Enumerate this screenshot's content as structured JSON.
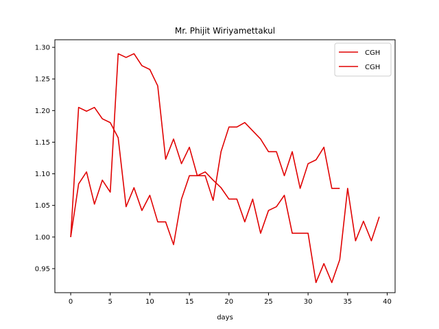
{
  "chart_data": {
    "type": "line",
    "title": "Mr. Phijit Wiriyamettakul",
    "xlabel": "days",
    "ylabel": "",
    "xlim": [
      -2,
      41
    ],
    "ylim": [
      0.912,
      1.312
    ],
    "xticks": [
      0,
      5,
      10,
      15,
      20,
      25,
      30,
      35,
      40
    ],
    "yticks": [
      0.95,
      1.0,
      1.05,
      1.1,
      1.15,
      1.2,
      1.25,
      1.3
    ],
    "ytick_labels": [
      "0.95",
      "1.00",
      "1.05",
      "1.10",
      "1.15",
      "1.20",
      "1.25",
      "1.30"
    ],
    "grid": false,
    "legend_position": "top-right",
    "series": [
      {
        "name": "CGH",
        "color": "#e00000",
        "x": [
          0,
          1,
          2,
          3,
          4,
          5,
          6,
          7,
          8,
          9,
          10,
          11,
          12,
          13,
          14,
          15,
          16,
          17,
          18,
          19,
          20,
          21,
          22,
          23,
          24,
          25,
          26,
          27,
          28,
          29,
          30,
          31,
          32,
          33,
          34
        ],
        "y": [
          1.0,
          1.084,
          1.103,
          1.052,
          1.09,
          1.071,
          1.29,
          1.284,
          1.29,
          1.271,
          1.265,
          1.239,
          1.123,
          1.155,
          1.116,
          1.142,
          1.097,
          1.097,
          1.058,
          1.135,
          1.174,
          1.174,
          1.181,
          1.168,
          1.155,
          1.135,
          1.135,
          1.097,
          1.135,
          1.077,
          1.116,
          1.122,
          1.142,
          1.077,
          1.077
        ]
      },
      {
        "name": "CGH",
        "color": "#e00000",
        "x": [
          0,
          1,
          2,
          3,
          4,
          5,
          6,
          7,
          8,
          9,
          10,
          11,
          12,
          13,
          14,
          15,
          16,
          17,
          18,
          19,
          20,
          21,
          22,
          23,
          24,
          25,
          26,
          27,
          28,
          29,
          30,
          31,
          32,
          33,
          34,
          35,
          36,
          37,
          38,
          39
        ],
        "y": [
          1.0,
          1.205,
          1.199,
          1.205,
          1.187,
          1.181,
          1.157,
          1.048,
          1.078,
          1.042,
          1.066,
          1.024,
          1.024,
          0.988,
          1.06,
          1.097,
          1.097,
          1.103,
          1.09,
          1.078,
          1.06,
          1.06,
          1.024,
          1.06,
          1.006,
          1.042,
          1.048,
          1.066,
          1.006,
          1.006,
          1.006,
          0.928,
          0.958,
          0.928,
          0.964,
          1.077,
          0.994,
          1.025,
          0.994,
          1.032
        ]
      }
    ]
  }
}
